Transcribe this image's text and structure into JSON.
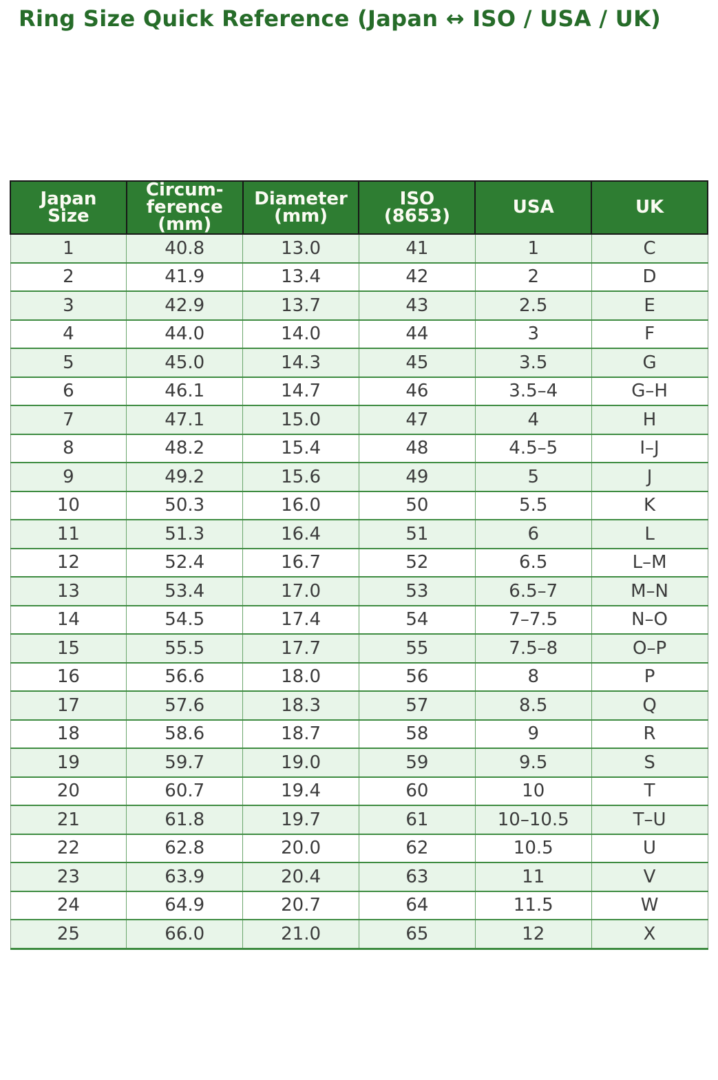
{
  "page": {
    "title": "Ring Size Quick Reference (Japan ↔ ISO / USA / UK)"
  },
  "colors": {
    "title_green": "#266c29",
    "header_bg": "#2e7d32",
    "header_text": "#fbfbf3",
    "header_border": "#171717",
    "row_alt_bg": "#e8f5e9",
    "row_bg": "#ffffff",
    "grid_green": "#3d8b40",
    "cell_text": "#3b3b3b"
  },
  "chart_data": {
    "type": "table",
    "title": "Ring Size Quick Reference (Japan ↔ ISO / USA / UK)",
    "columns": [
      "Japan\nSize",
      "Circum-\nference\n(mm)",
      "Diameter\n(mm)",
      "ISO\n(8653)",
      "USA",
      "UK"
    ],
    "rows": [
      [
        "1",
        "40.8",
        "13.0",
        "41",
        "1",
        "C"
      ],
      [
        "2",
        "41.9",
        "13.4",
        "42",
        "2",
        "D"
      ],
      [
        "3",
        "42.9",
        "13.7",
        "43",
        "2.5",
        "E"
      ],
      [
        "4",
        "44.0",
        "14.0",
        "44",
        "3",
        "F"
      ],
      [
        "5",
        "45.0",
        "14.3",
        "45",
        "3.5",
        "G"
      ],
      [
        "6",
        "46.1",
        "14.7",
        "46",
        "3.5–4",
        "G–H"
      ],
      [
        "7",
        "47.1",
        "15.0",
        "47",
        "4",
        "H"
      ],
      [
        "8",
        "48.2",
        "15.4",
        "48",
        "4.5–5",
        "I–J"
      ],
      [
        "9",
        "49.2",
        "15.6",
        "49",
        "5",
        "J"
      ],
      [
        "10",
        "50.3",
        "16.0",
        "50",
        "5.5",
        "K"
      ],
      [
        "11",
        "51.3",
        "16.4",
        "51",
        "6",
        "L"
      ],
      [
        "12",
        "52.4",
        "16.7",
        "52",
        "6.5",
        "L–M"
      ],
      [
        "13",
        "53.4",
        "17.0",
        "53",
        "6.5–7",
        "M–N"
      ],
      [
        "14",
        "54.5",
        "17.4",
        "54",
        "7–7.5",
        "N–O"
      ],
      [
        "15",
        "55.5",
        "17.7",
        "55",
        "7.5–8",
        "O–P"
      ],
      [
        "16",
        "56.6",
        "18.0",
        "56",
        "8",
        "P"
      ],
      [
        "17",
        "57.6",
        "18.3",
        "57",
        "8.5",
        "Q"
      ],
      [
        "18",
        "58.6",
        "18.7",
        "58",
        "9",
        "R"
      ],
      [
        "19",
        "59.7",
        "19.0",
        "59",
        "9.5",
        "S"
      ],
      [
        "20",
        "60.7",
        "19.4",
        "60",
        "10",
        "T"
      ],
      [
        "21",
        "61.8",
        "19.7",
        "61",
        "10–10.5",
        "T–U"
      ],
      [
        "22",
        "62.8",
        "20.0",
        "62",
        "10.5",
        "U"
      ],
      [
        "23",
        "63.9",
        "20.4",
        "63",
        "11",
        "V"
      ],
      [
        "24",
        "64.9",
        "20.7",
        "64",
        "11.5",
        "W"
      ],
      [
        "25",
        "66.0",
        "21.0",
        "65",
        "12",
        "X"
      ]
    ]
  }
}
